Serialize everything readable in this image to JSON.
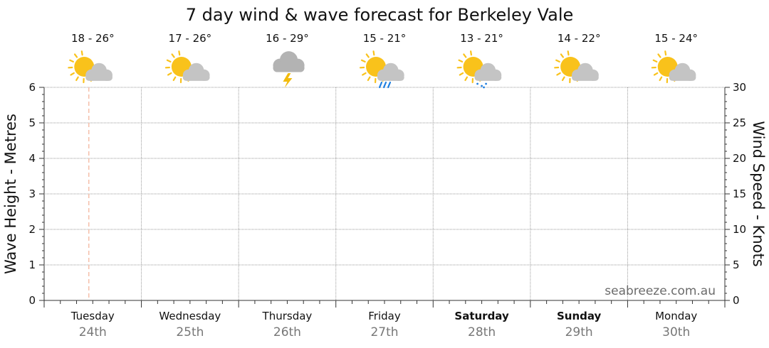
{
  "chart_data": {
    "type": "line",
    "title": "7 day wind & wave forecast for Berkeley Vale",
    "ylabel_left": "Wave Height - Metres",
    "ylabel_right": "Wind Speed - Knots",
    "ylim_left": [
      0,
      6
    ],
    "ylim_right": [
      0,
      30
    ],
    "yticks_left": [
      "0",
      "1",
      "2",
      "3",
      "4",
      "5",
      "6"
    ],
    "yticks_right": [
      "0",
      "5",
      "10",
      "15",
      "20",
      "25",
      "30"
    ],
    "grid": true,
    "current_time_marker": "Tuesday 24th",
    "series": [],
    "days": [
      {
        "day": "Tuesday",
        "date": "24th",
        "weekend": false,
        "temp": "18 - 26°",
        "icon": "partly-cloudy-icon"
      },
      {
        "day": "Wednesday",
        "date": "25th",
        "weekend": false,
        "temp": "17 - 26°",
        "icon": "partly-cloudy-icon"
      },
      {
        "day": "Thursday",
        "date": "26th",
        "weekend": false,
        "temp": "16 - 29°",
        "icon": "thunderstorm-icon"
      },
      {
        "day": "Friday",
        "date": "27th",
        "weekend": false,
        "temp": "15 - 21°",
        "icon": "showers-icon"
      },
      {
        "day": "Saturday",
        "date": "28th",
        "weekend": true,
        "temp": "13 - 21°",
        "icon": "light-rain-icon"
      },
      {
        "day": "Sunday",
        "date": "29th",
        "weekend": true,
        "temp": "14 - 22°",
        "icon": "partly-cloudy-icon"
      },
      {
        "day": "Monday",
        "date": "30th",
        "weekend": false,
        "temp": "15 - 24°",
        "icon": "partly-cloudy-icon"
      }
    ]
  },
  "watermark": "seabreeze.com.au",
  "colors": {
    "sun": "#f9c21b",
    "cloud": "#c4c4c4",
    "dark_cloud": "#b3b3b3",
    "lightning": "#f2bb0c",
    "rain": "#1f7fe0",
    "grid": "#9a9a9a",
    "current_marker": "#f0a080"
  }
}
